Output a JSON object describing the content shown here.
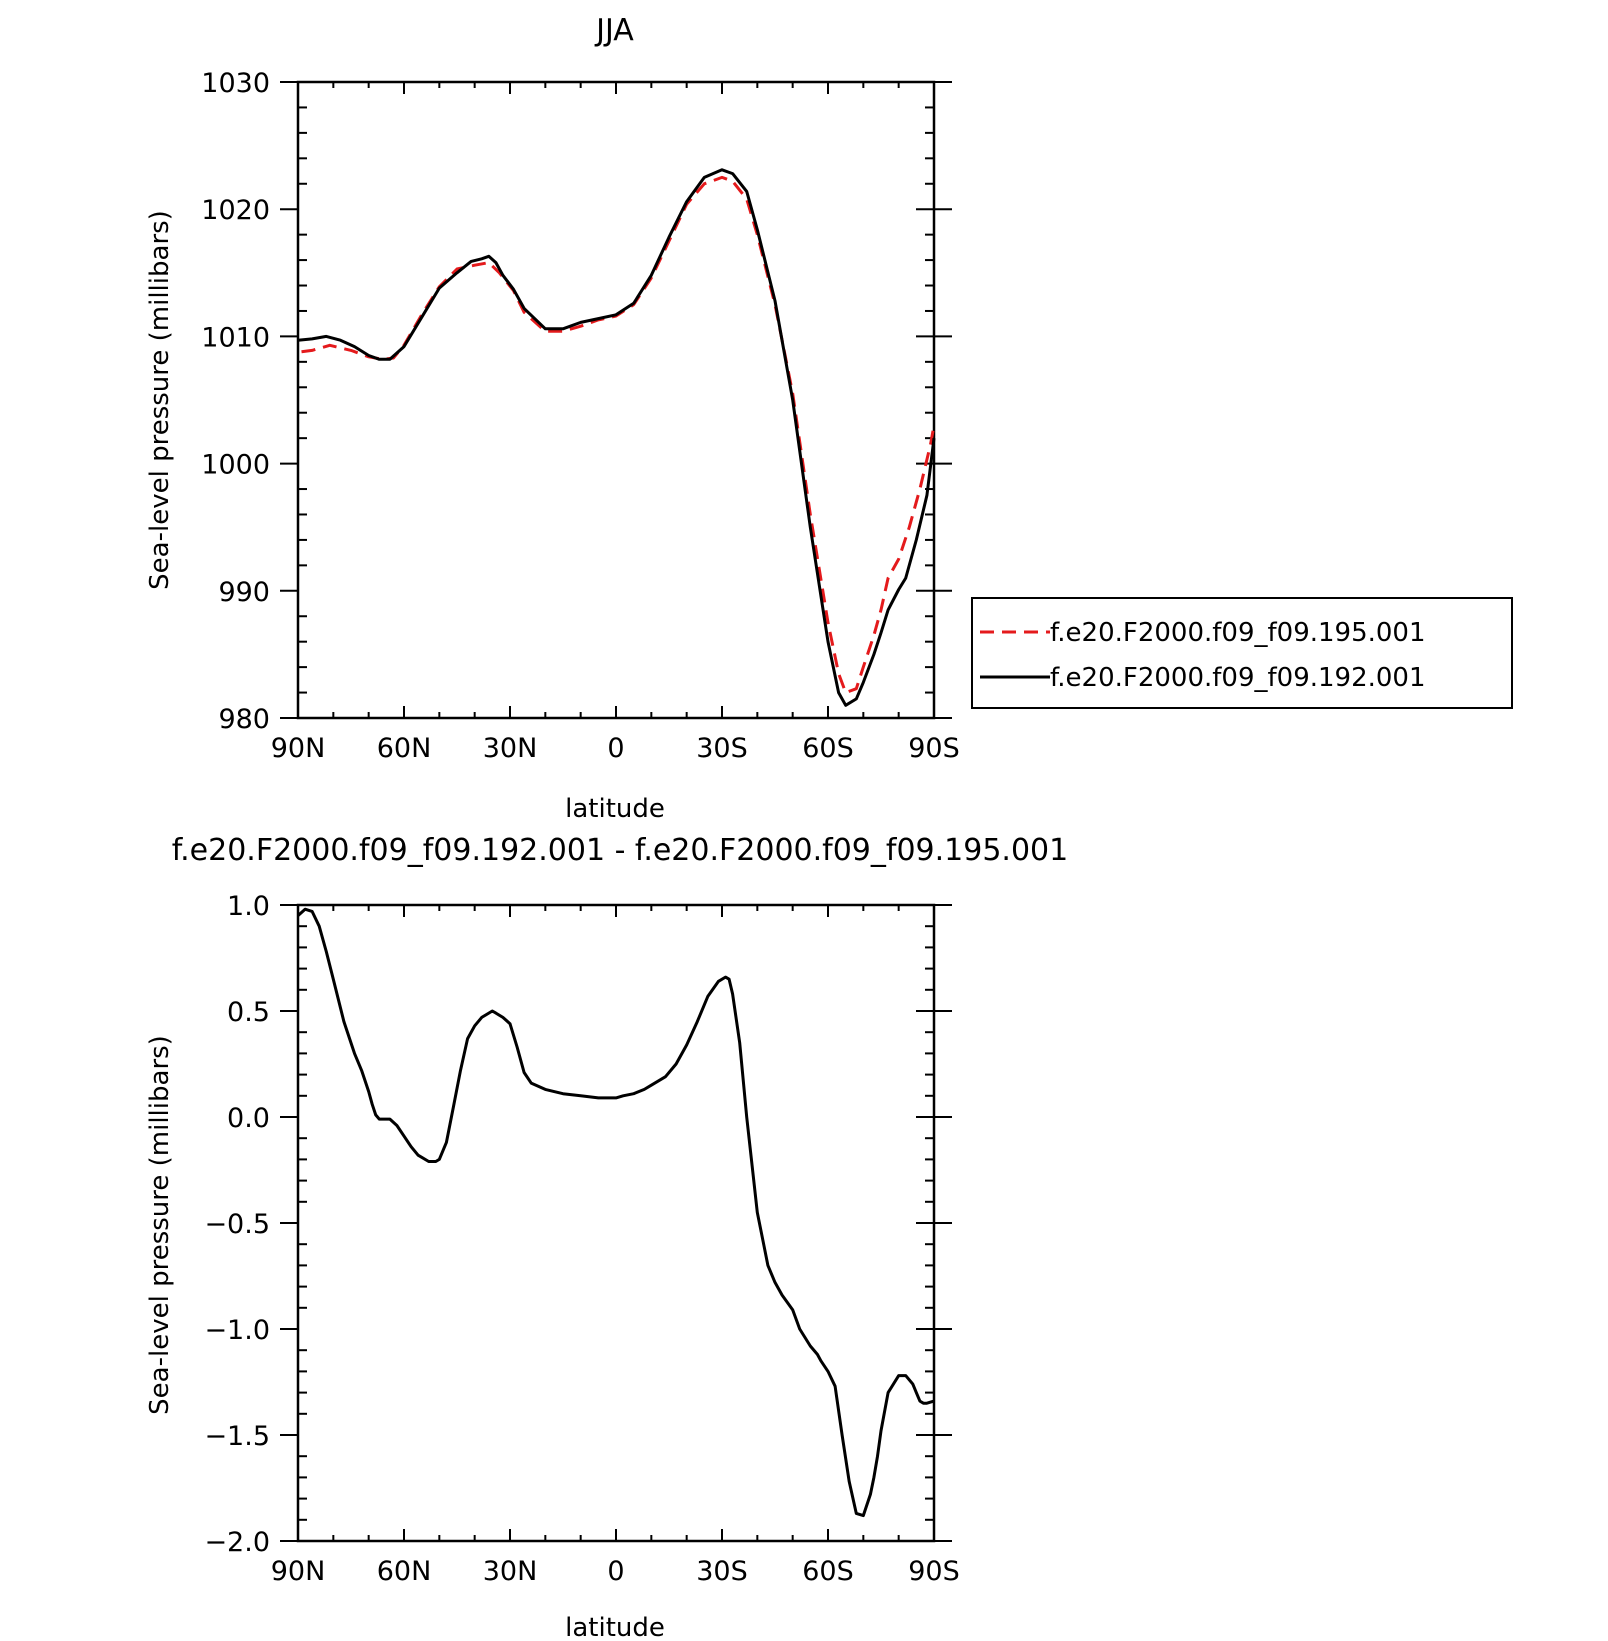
{
  "colors": {
    "series_a": "#e41a1c",
    "series_b": "#000000",
    "axes": "#000000"
  },
  "chart_data": [
    {
      "type": "line",
      "title": "JJA",
      "xlabel": "latitude",
      "ylabel": "Sea-level pressure (millibars)",
      "x_tick_labels": [
        "90N",
        "60N",
        "30N",
        "0",
        "30S",
        "60S",
        "90S"
      ],
      "y_tick_labels": [
        "1030",
        "1020",
        "1010",
        "1000",
        "990",
        "980"
      ],
      "xlim": [
        90,
        -90
      ],
      "ylim": [
        980,
        1030
      ],
      "grid": false,
      "legend_position": "right",
      "series": [
        {
          "name": "f.e20.F2000.f09_f09.195.001",
          "style": "dashed",
          "x": [
            89,
            86,
            81,
            75,
            70,
            66,
            63,
            60,
            55,
            50,
            45,
            40,
            36,
            33,
            29,
            26,
            20,
            15,
            10,
            5,
            0,
            -5,
            -10,
            -15,
            -20,
            -25,
            -30,
            -33,
            -37,
            -40,
            -45,
            -50,
            -55,
            -60,
            -63,
            -65,
            -68,
            -70,
            -73,
            -75,
            -77,
            -80,
            -83,
            -86,
            -89,
            -90
          ],
          "y": [
            1008.8,
            1008.9,
            1009.3,
            1008.9,
            1008.4,
            1008.2,
            1008.3,
            1009.3,
            1011.7,
            1013.9,
            1015.3,
            1015.6,
            1015.8,
            1015.0,
            1013.6,
            1011.9,
            1010.4,
            1010.4,
            1010.8,
            1011.3,
            1011.6,
            1012.5,
            1014.6,
            1017.5,
            1020.4,
            1022.0,
            1022.5,
            1022.2,
            1020.8,
            1018.0,
            1012.5,
            1005.5,
            996.0,
            987.5,
            983.5,
            982.0,
            982.3,
            984.0,
            986.5,
            988.5,
            991.0,
            992.5,
            995.0,
            998.0,
            1001.5,
            1003.0
          ]
        },
        {
          "name": "f.e20.F2000.f09_f09.192.001",
          "style": "solid",
          "x": [
            90,
            86,
            82,
            78,
            74,
            70,
            67,
            64,
            60,
            55,
            50,
            45,
            41,
            38,
            36,
            34,
            32,
            29,
            26,
            20,
            15,
            10,
            5,
            0,
            -5,
            -10,
            -15,
            -20,
            -25,
            -30,
            -33,
            -37,
            -40,
            -45,
            -50,
            -55,
            -60,
            -63,
            -65,
            -68,
            -70,
            -73,
            -75,
            -77,
            -80,
            -82,
            -85,
            -88,
            -90
          ],
          "y": [
            1009.7,
            1009.8,
            1010.0,
            1009.7,
            1009.2,
            1008.5,
            1008.2,
            1008.2,
            1009.2,
            1011.5,
            1013.8,
            1015.0,
            1015.9,
            1016.1,
            1016.3,
            1015.8,
            1014.8,
            1013.7,
            1012.2,
            1010.6,
            1010.6,
            1011.1,
            1011.4,
            1011.7,
            1012.6,
            1014.8,
            1017.8,
            1020.6,
            1022.5,
            1023.1,
            1022.8,
            1021.4,
            1018.4,
            1012.8,
            1005.0,
            995.0,
            986.0,
            982.0,
            981.0,
            981.5,
            982.8,
            985.0,
            986.7,
            988.5,
            990.1,
            991.0,
            994.0,
            997.5,
            1002.0
          ]
        }
      ]
    },
    {
      "type": "line",
      "title": "f.e20.F2000.f09_f09.192.001 - f.e20.F2000.f09_f09.195.001",
      "xlabel": "latitude",
      "ylabel": "Sea-level pressure (millibars)",
      "x_tick_labels": [
        "90N",
        "60N",
        "30N",
        "0",
        "30S",
        "60S",
        "90S"
      ],
      "y_tick_labels": [
        "1.0",
        "0.5",
        "0.0",
        "-0.5",
        "-1.0",
        "-1.5",
        "-2.0"
      ],
      "xlim": [
        90,
        -90
      ],
      "ylim": [
        -2.0,
        1.0
      ],
      "grid": false,
      "series": [
        {
          "style": "solid",
          "x": [
            90,
            88,
            86,
            84,
            82,
            80,
            77,
            74,
            72,
            70,
            69,
            68,
            67,
            66,
            64,
            62,
            60,
            58,
            56,
            55,
            53,
            51,
            50,
            48,
            46,
            44,
            42,
            40,
            38,
            36,
            35,
            34,
            32,
            30,
            28,
            26,
            24,
            20,
            15,
            10,
            5,
            2,
            0,
            -2,
            -5,
            -8,
            -10,
            -14,
            -17,
            -20,
            -23,
            -26,
            -29,
            -31,
            -32,
            -33,
            -35,
            -37,
            -40,
            -43,
            -45,
            -47,
            -50,
            -52,
            -55,
            -57,
            -58,
            -60,
            -62,
            -64,
            -66,
            -68,
            -70,
            -72,
            -73,
            -74,
            -75,
            -77,
            -80,
            -82,
            -84,
            -85,
            -86,
            -87,
            -88,
            -90
          ],
          "y": [
            0.95,
            0.98,
            0.97,
            0.9,
            0.78,
            0.65,
            0.45,
            0.3,
            0.22,
            0.12,
            0.06,
            0.01,
            -0.01,
            -0.01,
            -0.01,
            -0.04,
            -0.09,
            -0.14,
            -0.18,
            -0.19,
            -0.21,
            -0.21,
            -0.2,
            -0.12,
            0.05,
            0.22,
            0.37,
            0.43,
            0.47,
            0.49,
            0.5,
            0.49,
            0.47,
            0.44,
            0.33,
            0.21,
            0.16,
            0.13,
            0.11,
            0.1,
            0.09,
            0.09,
            0.09,
            0.1,
            0.11,
            0.13,
            0.15,
            0.19,
            0.25,
            0.34,
            0.45,
            0.57,
            0.64,
            0.66,
            0.65,
            0.58,
            0.35,
            0.0,
            -0.45,
            -0.7,
            -0.78,
            -0.84,
            -0.91,
            -1.0,
            -1.08,
            -1.12,
            -1.15,
            -1.2,
            -1.27,
            -1.5,
            -1.72,
            -1.87,
            -1.88,
            -1.78,
            -1.7,
            -1.6,
            -1.48,
            -1.3,
            -1.22,
            -1.22,
            -1.26,
            -1.3,
            -1.34,
            -1.35,
            -1.35,
            -1.34
          ]
        }
      ]
    }
  ]
}
